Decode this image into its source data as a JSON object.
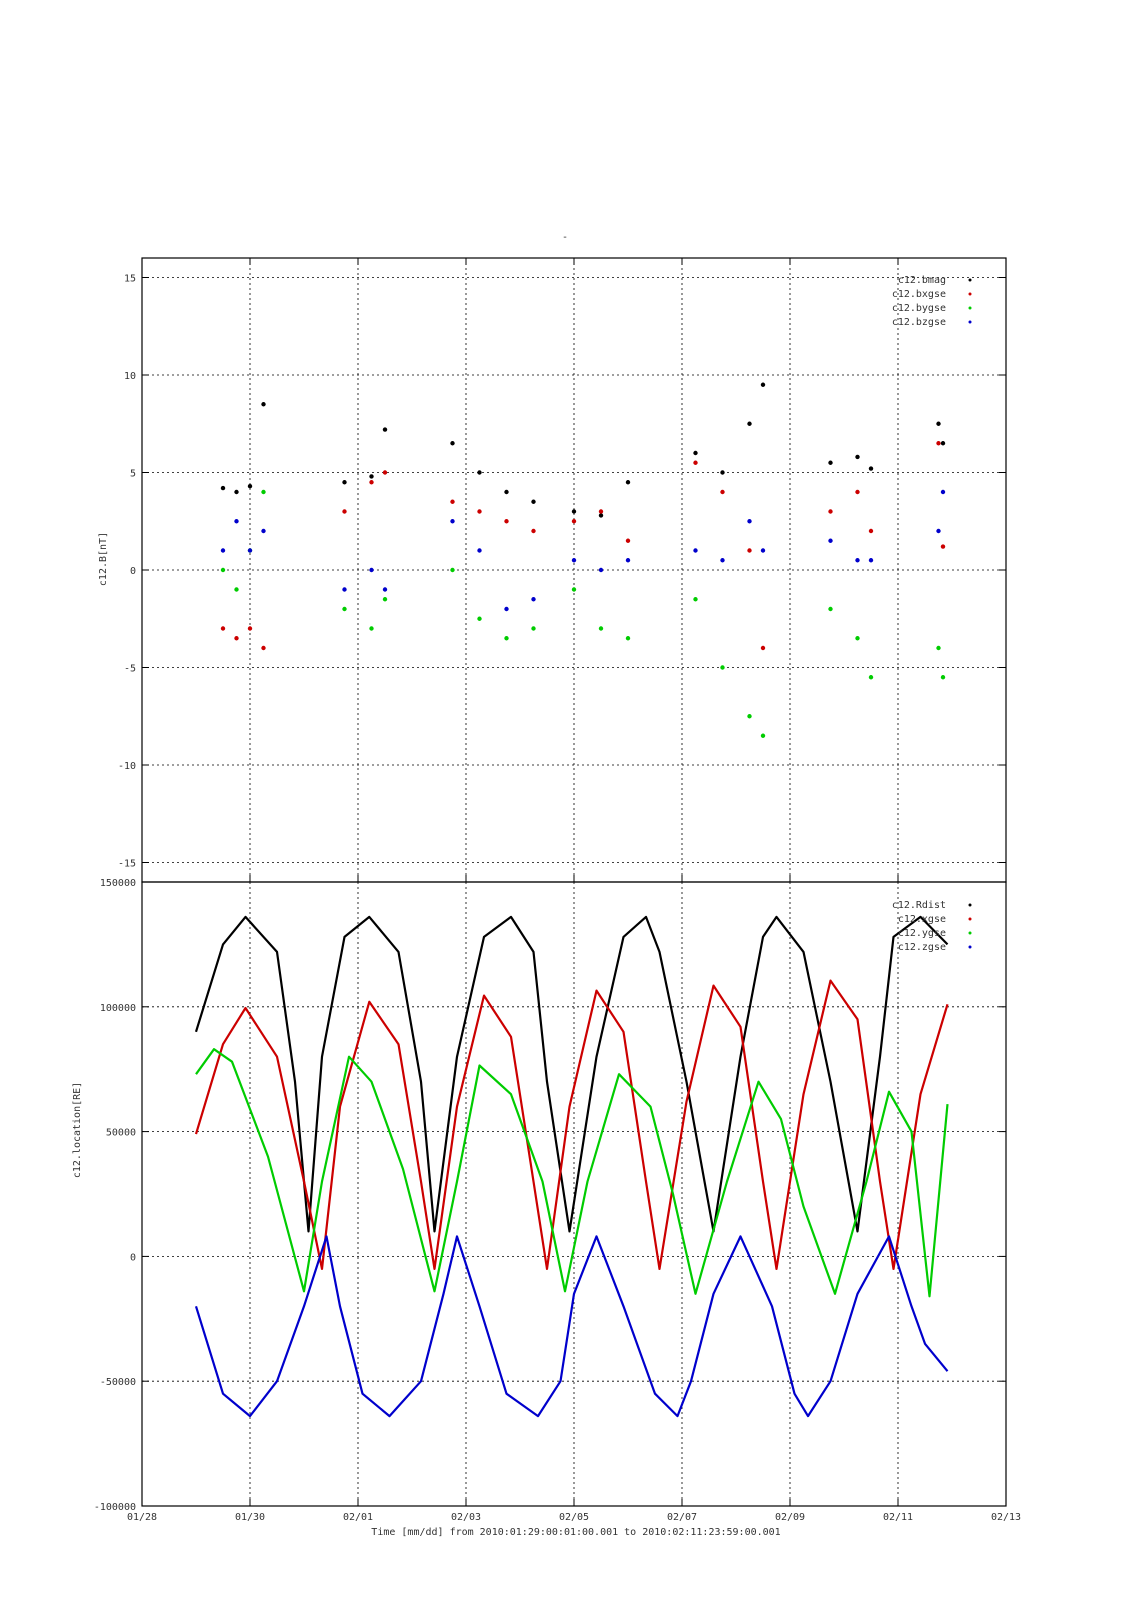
{
  "figure_title": "-",
  "x_caption": "Time [mm/dd]  from 2010:01:29:00:01:00.001  to  2010:02:11:23:59:00.001",
  "colors": {
    "black": "#000000",
    "red": "#cc0000",
    "green": "#00cc00",
    "blue": "#0000cc"
  },
  "chart_data": [
    {
      "type": "scatter",
      "ylabel": "c12.B[nT]",
      "xlabel": "",
      "xlim": [
        "01/28",
        "02/13"
      ],
      "ylim": [
        -16,
        16
      ],
      "y_ticks": [
        "15",
        "10",
        "5",
        "0",
        "-5",
        "-10",
        "-15"
      ],
      "grid": true,
      "legend_position": "top-right",
      "series": [
        {
          "name": "c12.bmag",
          "color": "black",
          "x": [
            "01/29 12:00",
            "01/29 18:00",
            "01/30 00:00",
            "01/30 06:00",
            "01/31 18:00",
            "02/01 06:00",
            "02/01 12:00",
            "02/02 18:00",
            "02/03 06:00",
            "02/03 18:00",
            "02/04 06:00",
            "02/05 00:00",
            "02/05 12:00",
            "02/06 00:00",
            "02/07 06:00",
            "02/07 18:00",
            "02/08 06:00",
            "02/08 12:00",
            "02/09 18:00",
            "02/10 06:00",
            "02/10 12:00",
            "02/11 18:00",
            "02/11 20:00"
          ],
          "y": [
            4.2,
            4.0,
            4.3,
            8.5,
            4.5,
            4.8,
            7.2,
            6.5,
            5.0,
            4.0,
            3.5,
            3.0,
            2.8,
            4.5,
            6.0,
            5.0,
            7.5,
            9.5,
            5.5,
            5.8,
            5.2,
            7.5,
            6.5
          ]
        },
        {
          "name": "c12.bxgse",
          "color": "red",
          "x": [
            "01/29 12:00",
            "01/29 18:00",
            "01/30 00:00",
            "01/30 06:00",
            "01/31 18:00",
            "02/01 06:00",
            "02/01 12:00",
            "02/02 18:00",
            "02/03 06:00",
            "02/03 18:00",
            "02/04 06:00",
            "02/05 00:00",
            "02/05 12:00",
            "02/06 00:00",
            "02/07 06:00",
            "02/07 18:00",
            "02/08 06:00",
            "02/08 12:00",
            "02/09 18:00",
            "02/10 06:00",
            "02/10 12:00",
            "02/11 18:00",
            "02/11 20:00"
          ],
          "y": [
            -3.0,
            -3.5,
            -3.0,
            -4.0,
            3.0,
            4.5,
            5.0,
            3.5,
            3.0,
            2.5,
            2.0,
            2.5,
            3.0,
            1.5,
            5.5,
            4.0,
            1.0,
            -4.0,
            3.0,
            4.0,
            2.0,
            6.5,
            1.2
          ]
        },
        {
          "name": "c12.bygse",
          "color": "green",
          "x": [
            "01/29 12:00",
            "01/29 18:00",
            "01/30 00:00",
            "01/30 06:00",
            "01/31 18:00",
            "02/01 06:00",
            "02/01 12:00",
            "02/02 18:00",
            "02/03 06:00",
            "02/03 18:00",
            "02/04 06:00",
            "02/05 00:00",
            "02/05 12:00",
            "02/06 00:00",
            "02/07 06:00",
            "02/07 18:00",
            "02/08 06:00",
            "02/08 12:00",
            "02/09 18:00",
            "02/10 06:00",
            "02/10 12:00",
            "02/11 18:00",
            "02/11 20:00"
          ],
          "y": [
            0.0,
            -1.0,
            1.0,
            4.0,
            -2.0,
            -3.0,
            -1.5,
            0.0,
            -2.5,
            -3.5,
            -3.0,
            -1.0,
            -3.0,
            -3.5,
            -1.5,
            -5.0,
            -7.5,
            -8.5,
            -2.0,
            -3.5,
            -5.5,
            -4.0,
            -5.5
          ]
        },
        {
          "name": "c12.bzgse",
          "color": "blue",
          "x": [
            "01/29 12:00",
            "01/29 18:00",
            "01/30 00:00",
            "01/30 06:00",
            "01/31 18:00",
            "02/01 06:00",
            "02/01 12:00",
            "02/02 18:00",
            "02/03 06:00",
            "02/03 18:00",
            "02/04 06:00",
            "02/05 00:00",
            "02/05 12:00",
            "02/06 00:00",
            "02/07 06:00",
            "02/07 18:00",
            "02/08 06:00",
            "02/08 12:00",
            "02/09 18:00",
            "02/10 06:00",
            "02/10 12:00",
            "02/11 18:00",
            "02/11 20:00"
          ],
          "y": [
            1.0,
            2.5,
            1.0,
            2.0,
            -1.0,
            0.0,
            -1.0,
            2.5,
            1.0,
            -2.0,
            -1.5,
            0.5,
            0.0,
            0.5,
            1.0,
            0.5,
            2.5,
            1.0,
            1.5,
            0.5,
            0.5,
            2.0,
            4.0
          ]
        }
      ],
      "legend_entries": [
        "c12.bmag",
        "c12.bxgse",
        "c12.bygse",
        "c12.bzgse"
      ]
    },
    {
      "type": "line",
      "ylabel": "c12.location[RE]",
      "xlabel": "Time [mm/dd]",
      "x_ticks": [
        "01/28",
        "01/30",
        "02/01",
        "02/03",
        "02/05",
        "02/07",
        "02/09",
        "02/11",
        "02/13"
      ],
      "xlim": [
        "01/28",
        "02/13"
      ],
      "ylim": [
        -100000,
        150000
      ],
      "y_ticks": [
        "150000",
        "100000",
        "50000",
        "0",
        "-50000",
        "-100000"
      ],
      "grid": true,
      "legend_position": "top-right",
      "series": [
        {
          "name": "c12.Rdist",
          "color": "black",
          "x": [
            "01/29 00:00",
            "01/29 12:00",
            "01/29 22:00",
            "01/30 12:00",
            "01/30 20:00",
            "01/31 02:00",
            "01/31 08:00",
            "01/31 18:00",
            "02/01 05:00",
            "02/01 18:00",
            "02/02 04:00",
            "02/02 10:00",
            "02/02 20:00",
            "02/03 08:00",
            "02/03 20:00",
            "02/04 06:00",
            "02/04 12:00",
            "02/04 22:00",
            "02/05 10:00",
            "02/05 22:00",
            "02/06 08:00",
            "02/06 14:00",
            "02/07 02:00",
            "02/07 14:00",
            "02/08 02:00",
            "02/08 12:00",
            "02/08 18:00",
            "02/09 06:00",
            "02/09 18:00",
            "02/10 06:00",
            "02/10 16:00",
            "02/10 22:00",
            "02/11 10:00",
            "02/11 22:00"
          ],
          "y": [
            90000,
            125000,
            136000,
            122000,
            70000,
            10000,
            80000,
            128000,
            136000,
            122000,
            70000,
            10000,
            80000,
            128000,
            136000,
            122000,
            70000,
            10000,
            80000,
            128000,
            136000,
            122000,
            70000,
            10000,
            80000,
            128000,
            136000,
            122000,
            70000,
            10000,
            80000,
            128000,
            136000,
            125000
          ]
        },
        {
          "name": "c12.xgse",
          "color": "red",
          "x": [
            "01/29 00:00",
            "01/29 12:00",
            "01/29 22:00",
            "01/30 12:00",
            "01/31 00:00",
            "01/31 08:00",
            "01/31 16:00",
            "02/01 05:00",
            "02/01 18:00",
            "02/02 04:00",
            "02/02 10:00",
            "02/02 20:00",
            "02/03 08:00",
            "02/03 20:00",
            "02/04 06:00",
            "02/04 12:00",
            "02/04 22:00",
            "02/05 10:00",
            "02/05 22:00",
            "02/06 08:00",
            "02/06 14:00",
            "02/07 02:00",
            "02/07 14:00",
            "02/08 02:00",
            "02/08 12:00",
            "02/08 18:00",
            "02/09 06:00",
            "02/09 18:00",
            "02/10 06:00",
            "02/10 16:00",
            "02/10 22:00",
            "02/11 10:00",
            "02/11 22:00"
          ],
          "y": [
            49000,
            85000,
            99500,
            80000,
            30000,
            -5000,
            60000,
            102000,
            85000,
            30000,
            -5000,
            60000,
            104500,
            88000,
            30000,
            -5000,
            60000,
            106500,
            90000,
            30000,
            -5000,
            62000,
            108500,
            92000,
            30000,
            -5000,
            65000,
            110500,
            95000,
            30000,
            -5000,
            65000,
            101000
          ]
        },
        {
          "name": "c12.ygse",
          "color": "green",
          "x": [
            "01/29 00:00",
            "01/29 08:00",
            "01/29 16:00",
            "01/30 08:00",
            "01/31 00:00",
            "01/31 08:00",
            "01/31 20:00",
            "02/01 06:00",
            "02/01 20:00",
            "02/02 10:00",
            "02/02 20:00",
            "02/03 06:00",
            "02/03 20:00",
            "02/04 10:00",
            "02/04 20:00",
            "02/05 06:00",
            "02/05 20:00",
            "02/06 10:00",
            "02/06 20:00",
            "02/07 06:00",
            "02/07 20:00",
            "02/08 10:00",
            "02/08 20:00",
            "02/09 06:00",
            "02/09 20:00",
            "02/10 10:00",
            "02/10 20:00",
            "02/11 06:00",
            "02/11 14:00",
            "02/11 22:00"
          ],
          "y": [
            73000,
            83000,
            78000,
            40000,
            -14000,
            30000,
            80000,
            70000,
            35000,
            -14000,
            30000,
            76500,
            65000,
            30000,
            -14000,
            30000,
            73000,
            60000,
            25000,
            -15000,
            30000,
            70000,
            55000,
            20000,
            -15000,
            30000,
            66000,
            50000,
            -16000,
            61000
          ]
        },
        {
          "name": "c12.zgse",
          "color": "blue",
          "x": [
            "01/29 00:00",
            "01/29 12:00",
            "01/30 00:00",
            "01/30 12:00",
            "01/31 00:00",
            "01/31 10:00",
            "01/31 16:00",
            "02/01 02:00",
            "02/01 14:00",
            "02/02 04:00",
            "02/02 14:00",
            "02/02 20:00",
            "02/03 06:00",
            "02/03 18:00",
            "02/04 08:00",
            "02/04 18:00",
            "02/05 00:00",
            "02/05 10:00",
            "02/05 22:00",
            "02/06 12:00",
            "02/06 22:00",
            "02/07 04:00",
            "02/07 14:00",
            "02/08 02:00",
            "02/08 16:00",
            "02/09 02:00",
            "02/09 08:00",
            "02/09 18:00",
            "02/10 06:00",
            "02/10 20:00",
            "02/11 06:00",
            "02/11 12:00",
            "02/11 22:00"
          ],
          "y": [
            -20000,
            -55000,
            -64000,
            -50000,
            -20000,
            8000,
            -20000,
            -55000,
            -64000,
            -50000,
            -15000,
            8000,
            -20000,
            -55000,
            -64000,
            -50000,
            -15000,
            8000,
            -20000,
            -55000,
            -64000,
            -50000,
            -15000,
            8000,
            -20000,
            -55000,
            -64000,
            -50000,
            -15000,
            8000,
            -20000,
            -35000,
            -46000
          ]
        }
      ],
      "legend_entries": [
        "c12.Rdist",
        "c12.xgse",
        "c12.ygse",
        "c12.zgse"
      ]
    }
  ]
}
